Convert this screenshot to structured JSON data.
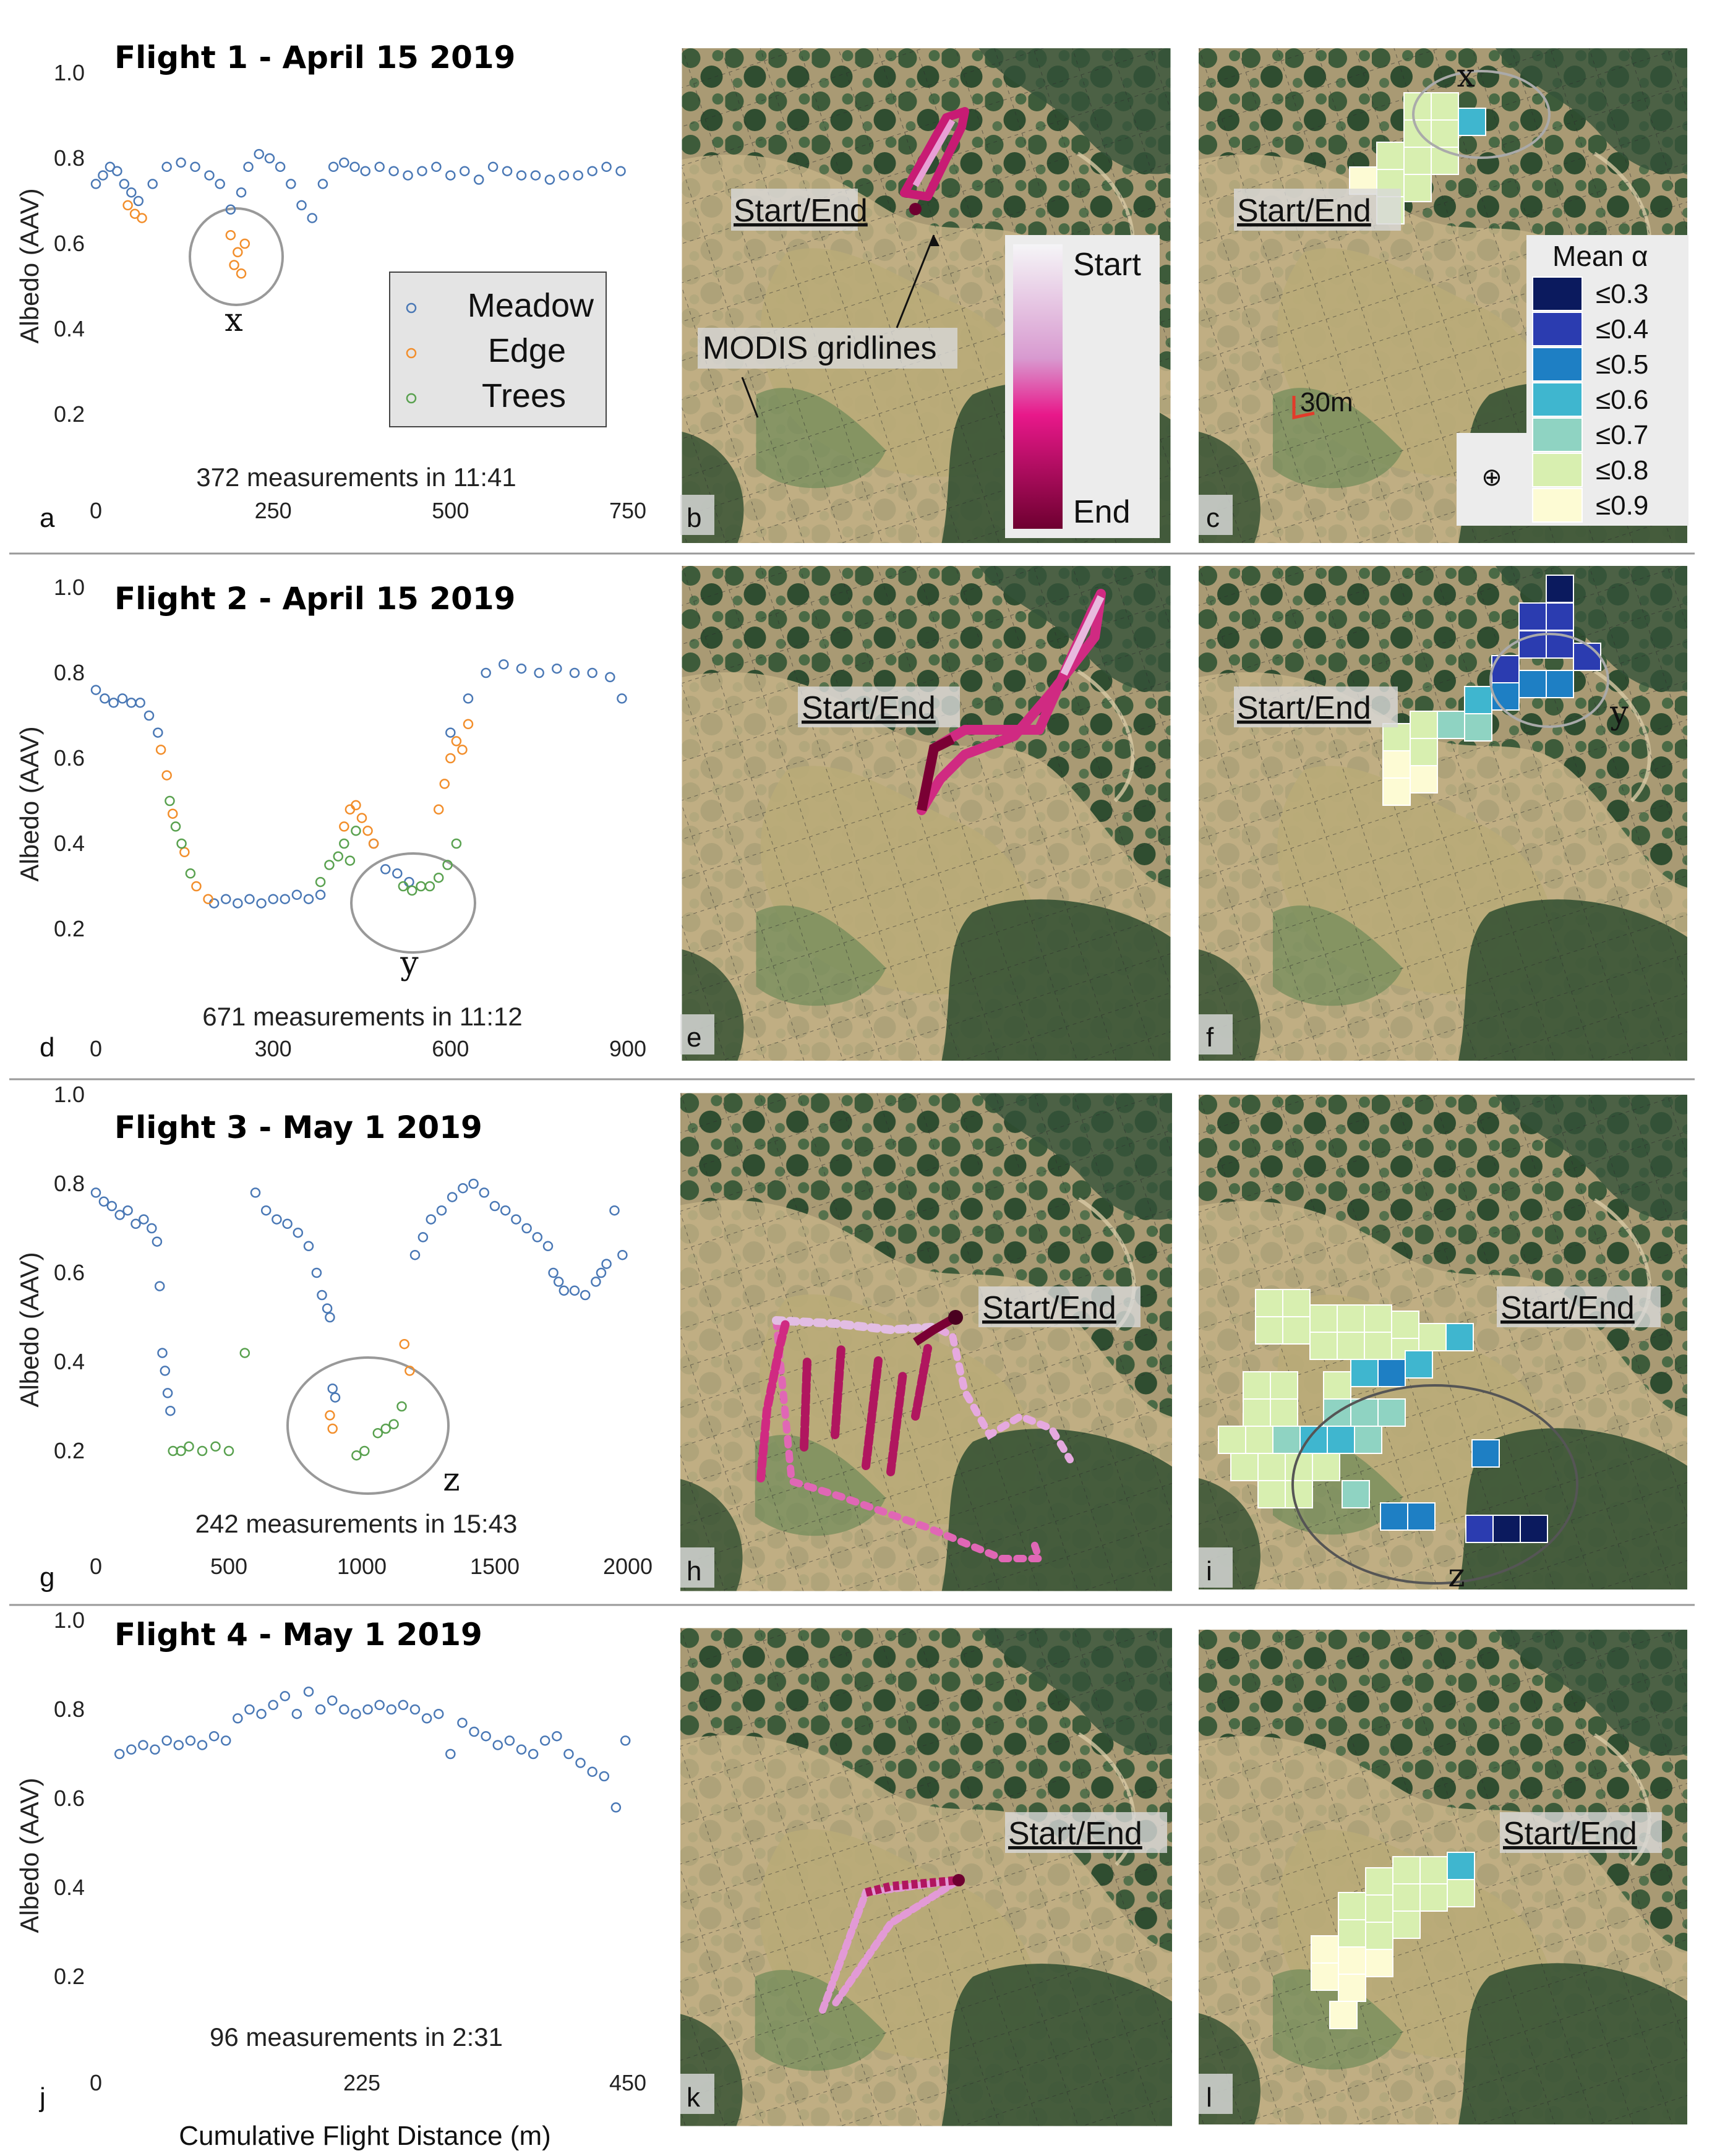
{
  "figure": {
    "panel_letters": [
      "a",
      "b",
      "c",
      "d",
      "e",
      "f",
      "g",
      "h",
      "i",
      "j",
      "k",
      "l"
    ],
    "xlabel": "Cumulative Flight Distance (m)",
    "map_annotations": {
      "start_end": "Start/End",
      "modis": "MODIS gridlines",
      "time_legend_start": "Start",
      "time_legend_end": "End",
      "scale": "30m",
      "mean_title": "Mean α",
      "mean_bins": [
        "≤0.3",
        "≤0.4",
        "≤0.5",
        "≤0.6",
        "≤0.7",
        "≤0.8",
        "≤0.9"
      ]
    },
    "colors": {
      "meadow": "#4a78b5",
      "edge": "#f28e2b",
      "trees": "#59a14f",
      "mean_bins": [
        "#0b1a5e",
        "#2b3cb0",
        "#1e7fc4",
        "#3fb6cf",
        "#8fd3c2",
        "#d8efb0",
        "#fdfbd4"
      ]
    }
  },
  "chart_data": [
    {
      "type": "scatter",
      "panel": "a",
      "title": "Flight 1 - April 15 2019",
      "ylabel": "Albedo (AAV)",
      "xlabel": "",
      "xlim": [
        0,
        750
      ],
      "ylim": [
        0,
        1.0
      ],
      "xticks": [
        "0",
        "250",
        "500",
        "750"
      ],
      "yticks": [
        "0.2",
        "0.4",
        "0.6",
        "0.8",
        "1.0"
      ],
      "note": "372 measurements in 11:41",
      "legend": [
        "Meadow",
        "Edge",
        "Trees"
      ],
      "annotation": "x",
      "series": [
        {
          "name": "Meadow",
          "x": [
            0,
            10,
            20,
            30,
            40,
            50,
            60,
            80,
            100,
            120,
            140,
            160,
            175,
            190,
            205,
            215,
            230,
            245,
            260,
            275,
            290,
            305,
            320,
            335,
            350,
            365,
            380,
            400,
            420,
            440,
            460,
            480,
            500,
            520,
            540,
            560,
            580,
            600,
            620,
            640,
            660,
            680,
            700,
            720,
            740
          ],
          "y": [
            0.74,
            0.76,
            0.78,
            0.77,
            0.74,
            0.72,
            0.7,
            0.74,
            0.78,
            0.79,
            0.78,
            0.76,
            0.74,
            0.68,
            0.72,
            0.78,
            0.81,
            0.8,
            0.78,
            0.74,
            0.69,
            0.66,
            0.74,
            0.78,
            0.79,
            0.78,
            0.77,
            0.78,
            0.77,
            0.76,
            0.77,
            0.78,
            0.76,
            0.77,
            0.75,
            0.78,
            0.77,
            0.76,
            0.76,
            0.75,
            0.76,
            0.76,
            0.77,
            0.78,
            0.77
          ]
        },
        {
          "name": "Edge",
          "x": [
            45,
            55,
            65,
            190,
            195,
            200,
            205,
            210
          ],
          "y": [
            0.69,
            0.67,
            0.66,
            0.62,
            0.55,
            0.58,
            0.53,
            0.6
          ]
        },
        {
          "name": "Trees",
          "x": [],
          "y": []
        }
      ]
    },
    {
      "type": "scatter",
      "panel": "d",
      "title": "Flight 2 - April 15 2019",
      "ylabel": "Albedo (AAV)",
      "xlabel": "",
      "xlim": [
        0,
        900
      ],
      "ylim": [
        0,
        1.0
      ],
      "xticks": [
        "0",
        "300",
        "600",
        "900"
      ],
      "yticks": [
        "0.2",
        "0.4",
        "0.6",
        "0.8",
        "1.0"
      ],
      "note": "671 measurements in 11:12",
      "annotation": "y",
      "series": [
        {
          "name": "Meadow",
          "x": [
            0,
            15,
            30,
            45,
            60,
            75,
            90,
            105,
            200,
            220,
            240,
            260,
            280,
            300,
            320,
            340,
            360,
            380,
            470,
            490,
            510,
            530,
            600,
            630,
            660,
            690,
            720,
            750,
            780,
            810,
            840,
            870,
            890
          ],
          "y": [
            0.76,
            0.74,
            0.73,
            0.74,
            0.73,
            0.73,
            0.7,
            0.66,
            0.26,
            0.27,
            0.26,
            0.27,
            0.26,
            0.27,
            0.27,
            0.28,
            0.27,
            0.28,
            0.4,
            0.34,
            0.33,
            0.31,
            0.66,
            0.74,
            0.8,
            0.82,
            0.81,
            0.8,
            0.81,
            0.8,
            0.8,
            0.79,
            0.74
          ]
        },
        {
          "name": "Edge",
          "x": [
            110,
            120,
            130,
            150,
            170,
            190,
            420,
            430,
            440,
            450,
            460,
            470,
            580,
            590,
            600,
            610,
            620,
            630
          ],
          "y": [
            0.62,
            0.56,
            0.47,
            0.38,
            0.3,
            0.27,
            0.44,
            0.48,
            0.49,
            0.46,
            0.43,
            0.4,
            0.48,
            0.54,
            0.6,
            0.64,
            0.62,
            0.68
          ]
        },
        {
          "name": "Trees",
          "x": [
            125,
            135,
            145,
            160,
            380,
            395,
            410,
            420,
            430,
            440,
            520,
            535,
            550,
            565,
            580,
            595,
            610
          ],
          "y": [
            0.5,
            0.44,
            0.4,
            0.33,
            0.31,
            0.35,
            0.37,
            0.4,
            0.36,
            0.43,
            0.3,
            0.29,
            0.3,
            0.3,
            0.32,
            0.35,
            0.4
          ]
        }
      ]
    },
    {
      "type": "scatter",
      "panel": "g",
      "title": "Flight 3 - May 1 2019",
      "ylabel": "Albedo (AAV)",
      "xlabel": "",
      "xlim": [
        0,
        2000
      ],
      "ylim": [
        0,
        1.0
      ],
      "xticks": [
        "0",
        "500",
        "1000",
        "1500",
        "2000"
      ],
      "yticks": [
        "0.2",
        "0.4",
        "0.6",
        "0.8",
        "1.0"
      ],
      "note": "242 measurements in 15:43",
      "annotation": "z",
      "series": [
        {
          "name": "Meadow",
          "x": [
            0,
            30,
            60,
            90,
            120,
            150,
            180,
            210,
            230,
            240,
            250,
            260,
            270,
            280,
            600,
            640,
            680,
            720,
            760,
            800,
            830,
            850,
            870,
            880,
            890,
            900,
            1200,
            1230,
            1260,
            1300,
            1340,
            1380,
            1420,
            1460,
            1500,
            1540,
            1580,
            1620,
            1660,
            1700,
            1720,
            1740,
            1760,
            1800,
            1840,
            1880,
            1900,
            1920,
            1950,
            1980
          ],
          "y": [
            0.78,
            0.76,
            0.75,
            0.73,
            0.74,
            0.71,
            0.72,
            0.7,
            0.67,
            0.57,
            0.42,
            0.38,
            0.33,
            0.29,
            0.78,
            0.74,
            0.72,
            0.71,
            0.69,
            0.66,
            0.6,
            0.55,
            0.52,
            0.5,
            0.34,
            0.32,
            0.64,
            0.68,
            0.72,
            0.74,
            0.77,
            0.79,
            0.8,
            0.78,
            0.75,
            0.74,
            0.72,
            0.7,
            0.68,
            0.66,
            0.6,
            0.58,
            0.56,
            0.56,
            0.55,
            0.58,
            0.6,
            0.62,
            0.74,
            0.64
          ]
        },
        {
          "name": "Edge",
          "x": [
            880,
            890,
            1160,
            1180
          ],
          "y": [
            0.28,
            0.25,
            0.44,
            0.38
          ]
        },
        {
          "name": "Trees",
          "x": [
            290,
            320,
            350,
            400,
            450,
            500,
            560,
            980,
            1010,
            1060,
            1090,
            1120,
            1150
          ],
          "y": [
            0.2,
            0.2,
            0.21,
            0.2,
            0.21,
            0.2,
            0.42,
            0.19,
            0.2,
            0.24,
            0.25,
            0.26,
            0.3
          ]
        }
      ]
    },
    {
      "type": "scatter",
      "panel": "j",
      "title": "Flight 4 - May 1 2019",
      "ylabel": "Albedo (AAV)",
      "xlabel": "Cumulative Flight Distance (m)",
      "xlim": [
        0,
        450
      ],
      "ylim": [
        0,
        1.0
      ],
      "xticks": [
        "0",
        "225",
        "450"
      ],
      "yticks": [
        "0.2",
        "0.4",
        "0.6",
        "0.8",
        "1.0"
      ],
      "note": "96 measurements in 2:31",
      "series": [
        {
          "name": "Meadow",
          "x": [
            20,
            30,
            40,
            50,
            60,
            70,
            80,
            90,
            100,
            110,
            120,
            130,
            140,
            150,
            160,
            170,
            180,
            190,
            200,
            210,
            220,
            230,
            240,
            250,
            260,
            270,
            280,
            290,
            300,
            310,
            320,
            330,
            340,
            350,
            360,
            370,
            380,
            390,
            400,
            410,
            420,
            430,
            440,
            448
          ],
          "y": [
            0.7,
            0.71,
            0.72,
            0.71,
            0.73,
            0.72,
            0.73,
            0.72,
            0.74,
            0.73,
            0.78,
            0.8,
            0.79,
            0.81,
            0.83,
            0.79,
            0.84,
            0.8,
            0.82,
            0.8,
            0.79,
            0.8,
            0.81,
            0.8,
            0.81,
            0.8,
            0.78,
            0.79,
            0.7,
            0.77,
            0.75,
            0.74,
            0.72,
            0.73,
            0.71,
            0.7,
            0.73,
            0.74,
            0.7,
            0.68,
            0.66,
            0.65,
            0.58,
            0.73
          ]
        },
        {
          "name": "Edge",
          "x": [],
          "y": []
        },
        {
          "name": "Trees",
          "x": [],
          "y": []
        }
      ]
    }
  ]
}
